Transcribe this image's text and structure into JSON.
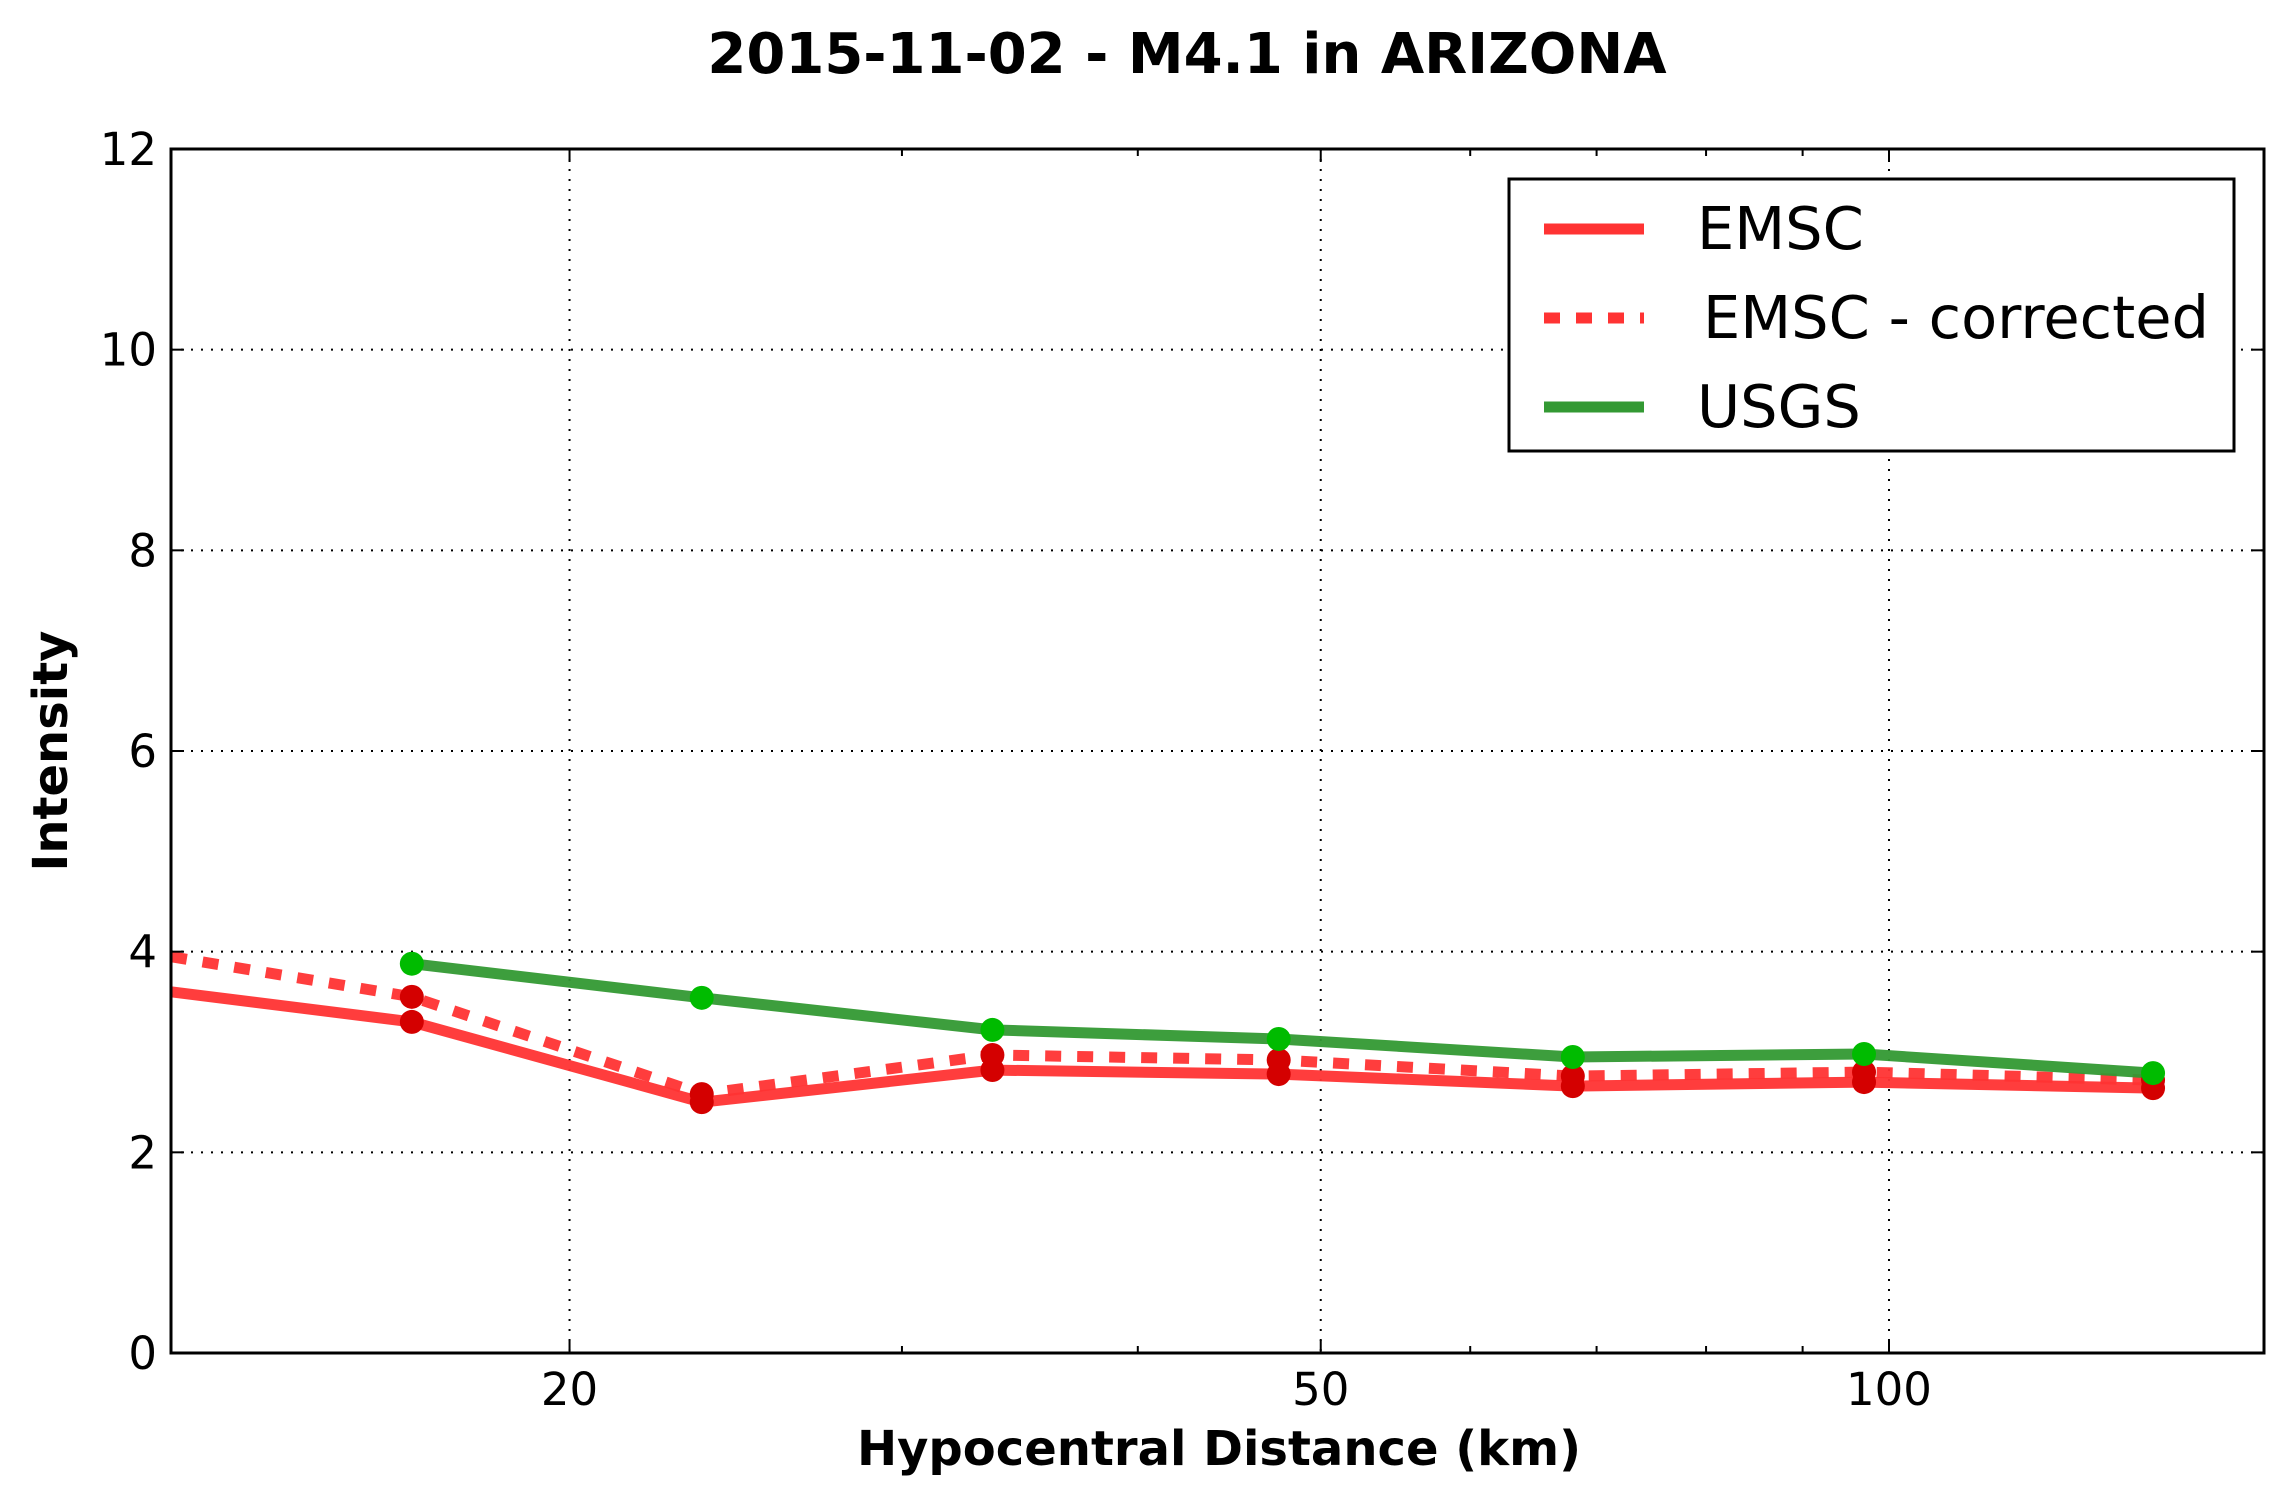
{
  "chart_data": {
    "type": "line",
    "title": "2015-11-02 - M4.1 in ARIZONA",
    "xlabel": "Hypocentral Distance (km)",
    "ylabel": "Intensity",
    "xscale": "log",
    "xlim": [
      12.3,
      158
    ],
    "ylim": [
      0,
      12
    ],
    "xticks": [
      20,
      50,
      100
    ],
    "yticks": [
      0,
      2,
      4,
      6,
      8,
      10,
      12
    ],
    "grid": true,
    "legend_position": "top-right",
    "series": [
      {
        "name": "EMSC",
        "color": "#ff3333",
        "marker_color": "#d40000",
        "style": "solid",
        "x": [
          12.3,
          16.5,
          23.5,
          33.5,
          47.5,
          68,
          97,
          138
        ],
        "y": [
          3.6,
          3.3,
          2.5,
          2.82,
          2.78,
          2.66,
          2.7,
          2.64
        ],
        "marker_x": [
          16.5,
          23.5,
          33.5,
          47.5,
          68,
          97,
          138
        ],
        "marker_y": [
          3.3,
          2.5,
          2.82,
          2.78,
          2.66,
          2.7,
          2.64
        ]
      },
      {
        "name": "EMSC - corrected",
        "color": "#ff3333",
        "marker_color": "#d40000",
        "style": "dashed",
        "x": [
          12.3,
          16.5,
          23.5,
          33.5,
          47.5,
          68,
          97,
          138
        ],
        "y": [
          3.95,
          3.55,
          2.58,
          2.97,
          2.92,
          2.76,
          2.8,
          2.72
        ],
        "marker_x": [
          16.5,
          23.5,
          33.5,
          47.5,
          68,
          97,
          138
        ],
        "marker_y": [
          3.55,
          2.58,
          2.97,
          2.92,
          2.76,
          2.8,
          2.72
        ]
      },
      {
        "name": "USGS",
        "color": "#339933",
        "marker_color": "#00bb00",
        "style": "solid",
        "x": [
          16.5,
          23.5,
          33.5,
          47.5,
          68,
          97,
          138
        ],
        "y": [
          3.88,
          3.54,
          3.22,
          3.13,
          2.95,
          2.98,
          2.79
        ],
        "marker_x": [
          16.5,
          23.5,
          33.5,
          47.5,
          68,
          97,
          138
        ],
        "marker_y": [
          3.88,
          3.54,
          3.22,
          3.13,
          2.95,
          2.98,
          2.79
        ]
      }
    ]
  }
}
